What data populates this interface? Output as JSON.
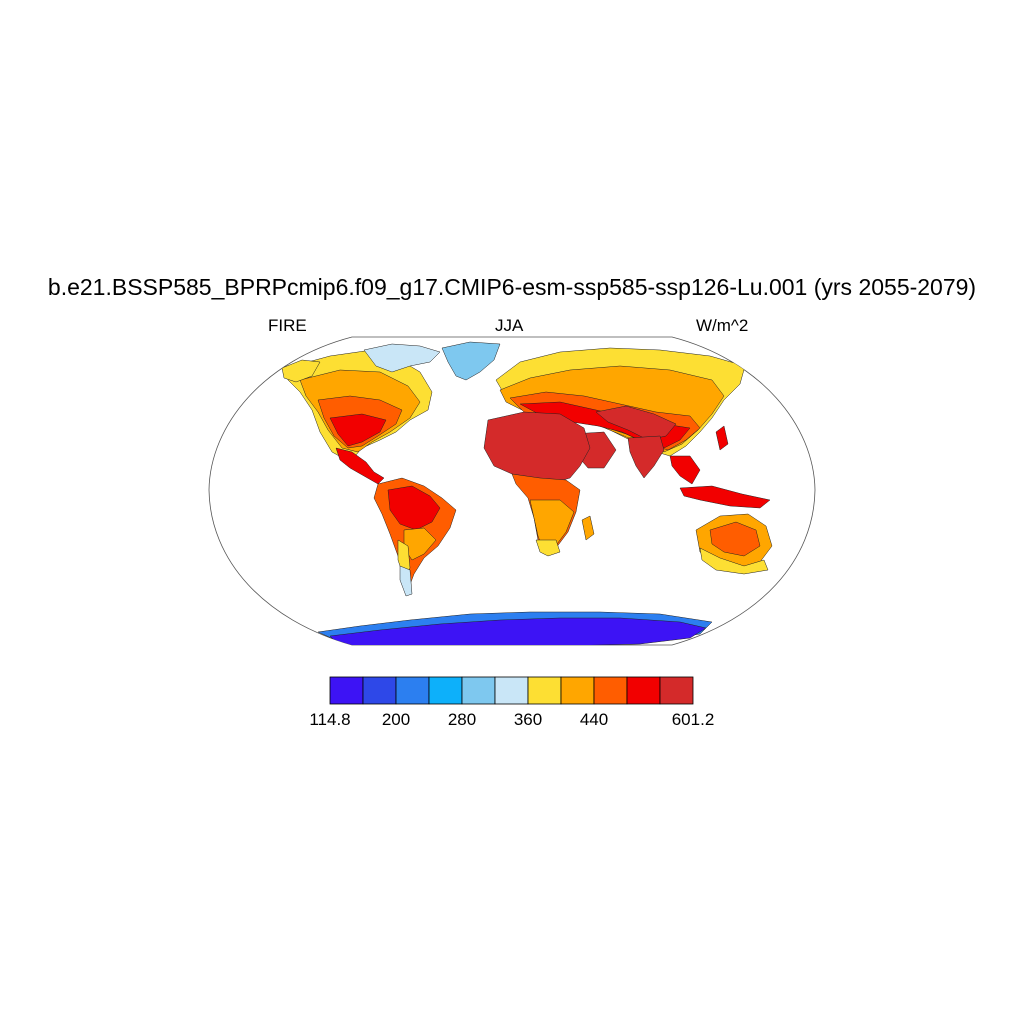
{
  "title": "b.e21.BSSP585_BPRPcmip6.f09_g17.CMIP6-esm-ssp585-ssp126-Lu.001 (yrs 2055-2079)",
  "left_label": "FIRE",
  "center_label": "JJA",
  "right_label": "W/m^2",
  "colorbar": {
    "colors": [
      "#3d13f5",
      "#2e48e8",
      "#2c7ff0",
      "#0db0fa",
      "#7ec8ef",
      "#c9e6f7",
      "#fddf33",
      "#ffa600",
      "#ff5d00",
      "#f20000",
      "#d42a2a"
    ],
    "tick_labels": [
      "114.8",
      "200",
      "280",
      "360",
      "440",
      "601.2"
    ]
  },
  "map_colors": {
    "antarctica": "#3d13f5",
    "antarctica_coast": "#2c7ff0",
    "greenland": "#7ec8ef",
    "arctic_islands": "#c9e6f7",
    "sahara": "#d42a2a",
    "hot": "#f20000",
    "warm": "#ff5d00",
    "mild": "#ffa600",
    "cool": "#fddf33"
  }
}
